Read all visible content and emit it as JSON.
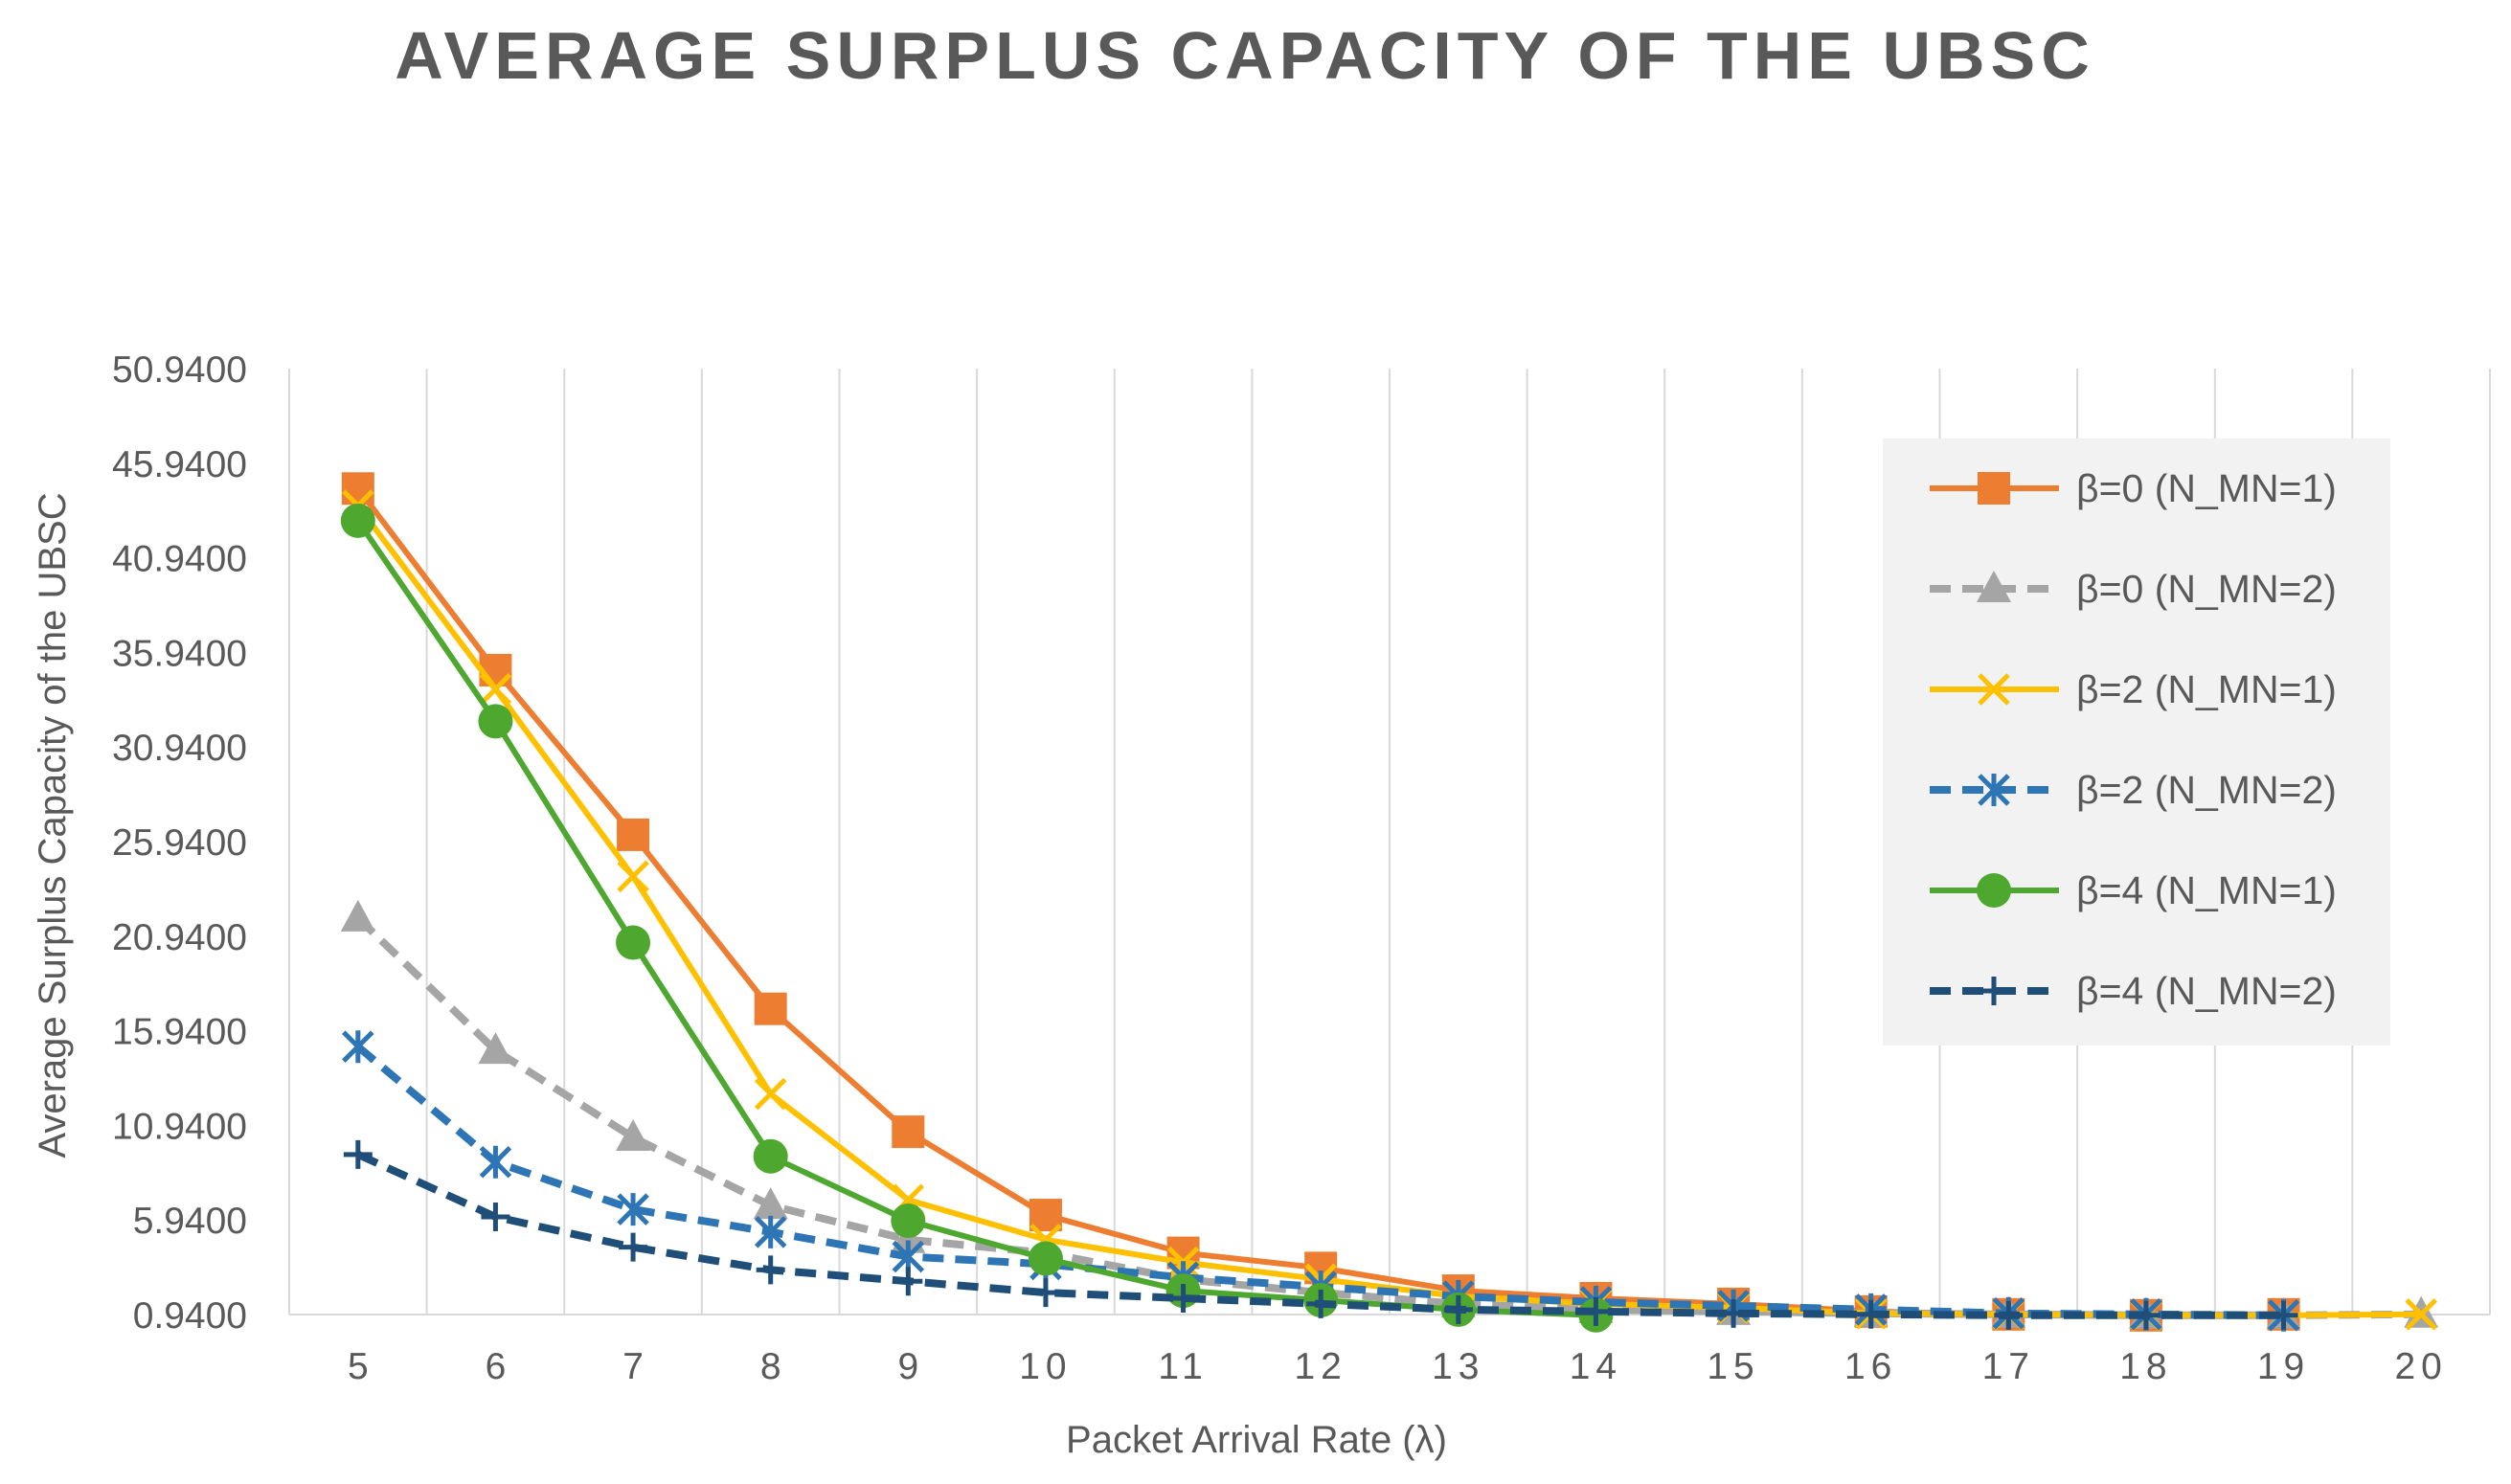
{
  "chart_data": {
    "type": "line",
    "title": "AVERAGE SURPLUS CAPACITY OF THE UBSC",
    "xlabel": "Packet Arrival Rate  (λ)",
    "ylabel": "Average Surplus Capacity of the UBSC",
    "x": [
      5,
      6,
      7,
      8,
      9,
      10,
      11,
      12,
      13,
      14,
      15,
      16,
      17,
      18,
      19,
      20
    ],
    "x_tick_labels": [
      "5",
      "6",
      "7",
      "8",
      "9",
      "10",
      "11",
      "12",
      "13",
      "14",
      "15",
      "16",
      "17",
      "18",
      "19",
      "20"
    ],
    "y_tick_labels": [
      "0.9400",
      "5.9400",
      "10.9400",
      "15.9400",
      "20.9400",
      "25.9400",
      "30.9400",
      "35.9400",
      "40.9400",
      "45.9400",
      "50.9400"
    ],
    "ylim": [
      0.94,
      50.94
    ],
    "grid": "vertical",
    "legend_position": "right",
    "series": [
      {
        "name": "β=0 (N_MN=1)",
        "color": "#ED7D31",
        "dash": "solid",
        "marker": "square",
        "values": [
          44.6,
          35.0,
          26.3,
          17.1,
          10.6,
          6.2,
          4.2,
          3.4,
          2.2,
          1.8,
          1.5,
          1.1,
          0.95,
          0.9,
          0.95,
          null
        ]
      },
      {
        "name": "β=0 (N_MN=2)",
        "color": "#A5A5A5",
        "dash": "dashed",
        "marker": "triangle",
        "values": [
          21.9,
          14.9,
          10.3,
          6.7,
          4.9,
          4.2,
          2.8,
          2.1,
          1.5,
          1.2,
          1.1,
          1.0,
          0.95,
          0.9,
          0.9,
          0.95
        ]
      },
      {
        "name": "β=2 (N_MN=1)",
        "color": "#FFC000",
        "dash": "solid",
        "marker": "x",
        "values": [
          43.7,
          34.0,
          24.1,
          12.6,
          7.0,
          4.9,
          3.7,
          2.8,
          1.9,
          1.5,
          1.3,
          1.0,
          0.95,
          0.9,
          0.9,
          0.95
        ]
      },
      {
        "name": "β=2 (N_MN=2)",
        "color": "#2E75B6",
        "dash": "dashed",
        "marker": "asterisk",
        "values": [
          15.1,
          9.0,
          6.5,
          5.3,
          4.0,
          3.6,
          2.9,
          2.4,
          1.9,
          1.6,
          1.4,
          1.2,
          1.0,
          0.95,
          0.9,
          null
        ]
      },
      {
        "name": "β=4 (N_MN=1)",
        "color": "#4EA72E",
        "dash": "solid",
        "marker": "circle",
        "values": [
          42.9,
          32.3,
          20.6,
          9.3,
          5.9,
          3.9,
          2.2,
          1.7,
          1.2,
          0.9,
          null,
          null,
          null,
          null,
          null,
          null
        ]
      },
      {
        "name": "β=4 (N_MN=2)",
        "color": "#1F4E79",
        "dash": "dashed",
        "marker": "plus",
        "values": [
          9.4,
          6.1,
          4.5,
          3.3,
          2.7,
          2.1,
          1.8,
          1.5,
          1.2,
          1.1,
          1.0,
          0.95,
          0.9,
          0.9,
          0.9,
          null
        ]
      }
    ]
  }
}
